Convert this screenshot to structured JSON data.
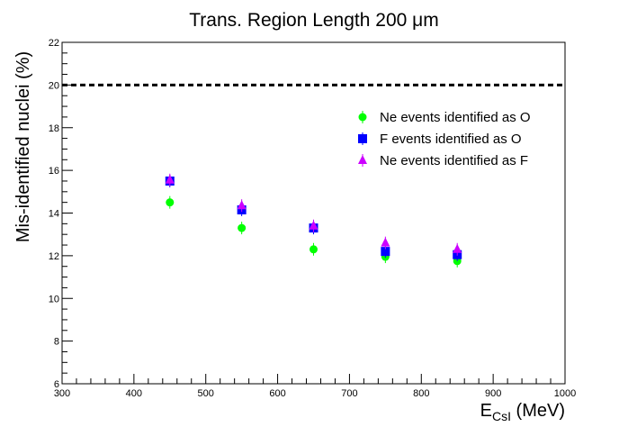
{
  "chart_data": {
    "type": "scatter",
    "title": "Trans. Region Length 200 μm",
    "xlabel": {
      "main": "E",
      "sub": "CsI",
      "unit": " (MeV)"
    },
    "ylabel": "Mis-identified nuclei (%)",
    "xlim": [
      300,
      1000
    ],
    "ylim": [
      6,
      22
    ],
    "x_ticks": [
      "300",
      "400",
      "500",
      "600",
      "700",
      "800",
      "900",
      "1000"
    ],
    "y_ticks": [
      "6",
      "8",
      "10",
      "12",
      "14",
      "16",
      "18",
      "20",
      "22"
    ],
    "reference_line": {
      "y": 20,
      "style": "dashed",
      "color": "#000000"
    },
    "legend_position": "top-right",
    "grid": false,
    "series": [
      {
        "name": "Ne events identified as O",
        "marker": "circle",
        "color": "#00ff00",
        "x": [
          450,
          550,
          650,
          750,
          850
        ],
        "y": [
          14.5,
          13.3,
          12.3,
          11.95,
          11.75
        ]
      },
      {
        "name": "F events identified as O",
        "marker": "square",
        "color": "#0000ff",
        "x": [
          450,
          550,
          650,
          750,
          850
        ],
        "y": [
          15.5,
          14.15,
          13.3,
          12.2,
          12.05
        ]
      },
      {
        "name": "Ne events identified as F",
        "marker": "triangle",
        "color": "#cc00ff",
        "x": [
          450,
          550,
          650,
          750,
          850
        ],
        "y": [
          15.55,
          14.35,
          13.4,
          12.6,
          12.3
        ]
      }
    ]
  }
}
